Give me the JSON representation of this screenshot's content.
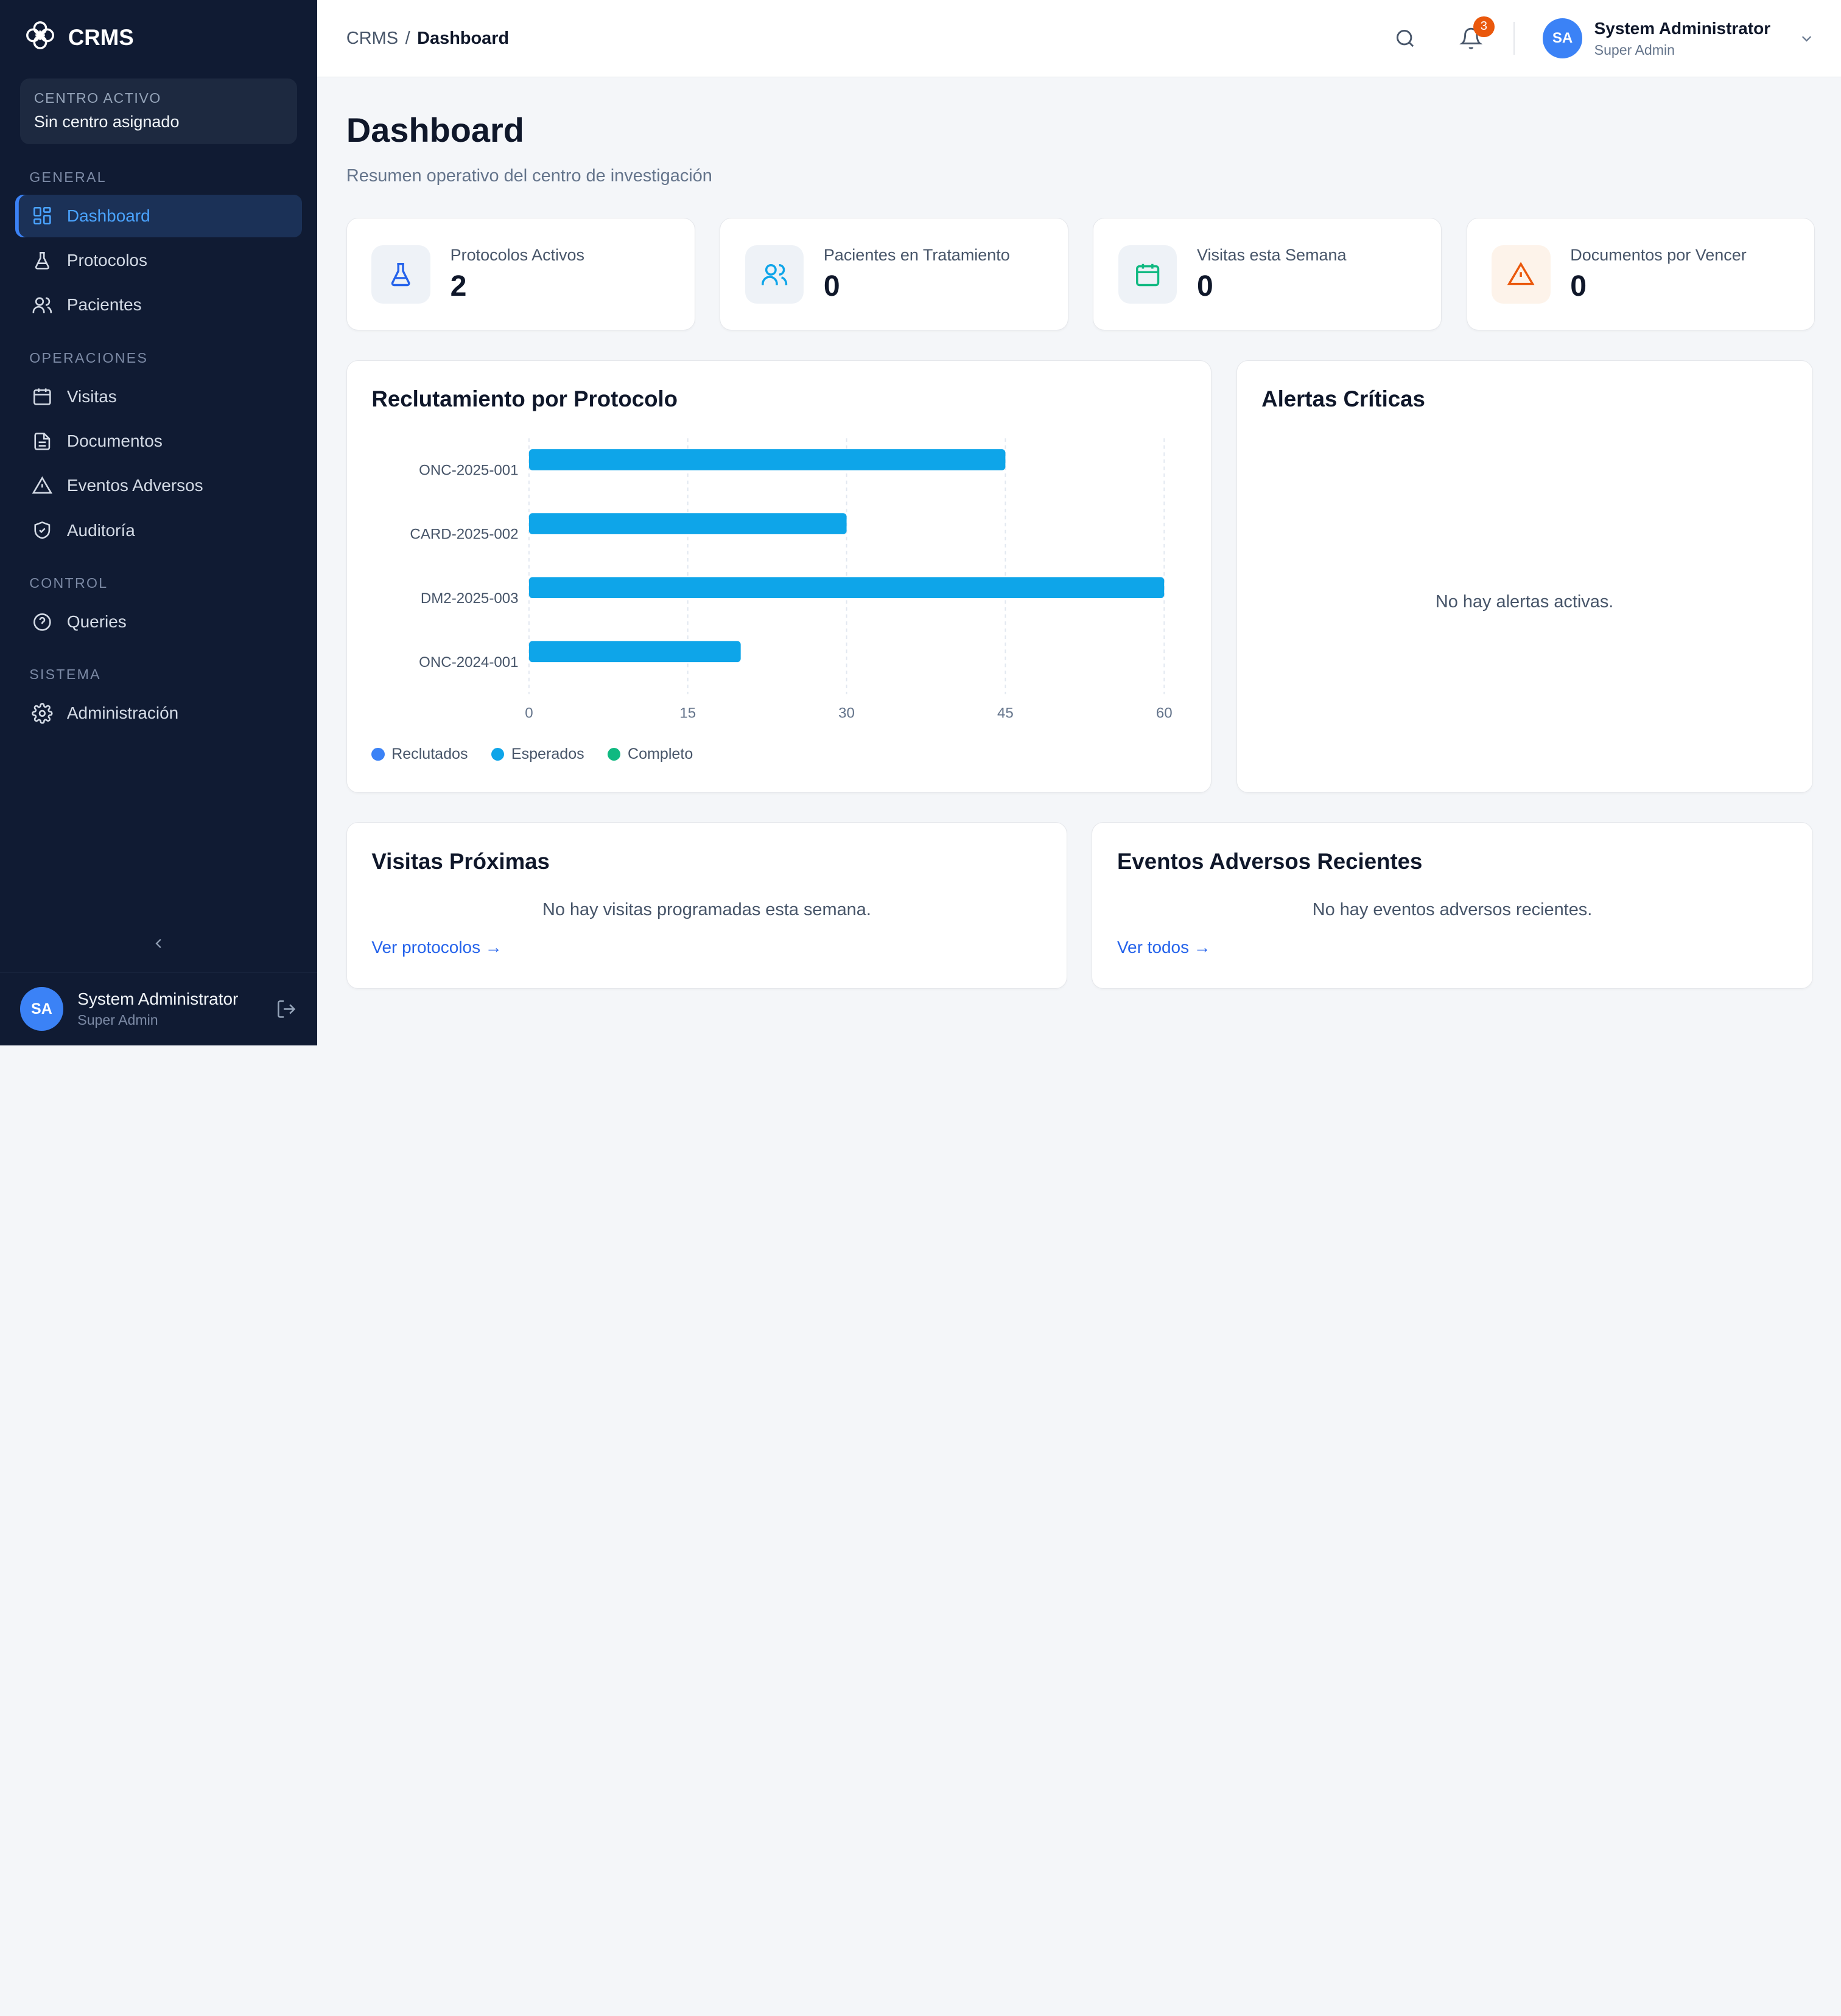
{
  "brand": {
    "name": "CRMS"
  },
  "center": {
    "label": "CENTRO ACTIVO",
    "value": "Sin centro asignado"
  },
  "sidebar": {
    "sections": [
      {
        "title": "GENERAL",
        "items": [
          "Dashboard",
          "Protocolos",
          "Pacientes"
        ]
      },
      {
        "title": "OPERACIONES",
        "items": [
          "Visitas",
          "Documentos",
          "Eventos Adversos",
          "Auditoría"
        ]
      },
      {
        "title": "CONTROL",
        "items": [
          "Queries"
        ]
      },
      {
        "title": "SISTEMA",
        "items": [
          "Administración"
        ]
      }
    ],
    "active": "Dashboard",
    "user": {
      "initials": "SA",
      "name": "System Administrator",
      "role": "Super Admin"
    }
  },
  "breadcrumb": {
    "root": "CRMS",
    "sep": "/",
    "current": "Dashboard"
  },
  "topbar": {
    "notifications": "3",
    "user": {
      "initials": "SA",
      "name": "System Administrator",
      "role": "Super Admin"
    }
  },
  "page": {
    "title": "Dashboard",
    "subtitle": "Resumen operativo del centro de investigación"
  },
  "stats": [
    {
      "label": "Protocolos Activos",
      "value": "2",
      "icon": "flask-icon",
      "color": "#2563eb",
      "bg": "#eef2f7"
    },
    {
      "label": "Pacientes en Tratamiento",
      "value": "0",
      "icon": "users-icon",
      "color": "#0ea5e9",
      "bg": "#eef2f7"
    },
    {
      "label": "Visitas esta Semana",
      "value": "0",
      "icon": "calendar-icon",
      "color": "#10b981",
      "bg": "#eef2f7"
    },
    {
      "label": "Documentos por Vencer",
      "value": "0",
      "icon": "warning-icon",
      "color": "#ea580c",
      "bg": "#fdf3ea"
    }
  ],
  "chart_card": {
    "title": "Reclutamiento por Protocolo"
  },
  "chart_data": {
    "type": "bar",
    "orientation": "horizontal",
    "categories": [
      "ONC-2025-001",
      "CARD-2025-002",
      "DM2-2025-003",
      "ONC-2024-001"
    ],
    "values": [
      45,
      30,
      60,
      20
    ],
    "xticks": [
      "0",
      "15",
      "30",
      "45",
      "60"
    ],
    "xlim": [
      0,
      60
    ],
    "grid": "vertical-dashed",
    "bar_color": "#0ea5e9",
    "legend": [
      {
        "name": "Reclutados",
        "color": "#3b82f6"
      },
      {
        "name": "Esperados",
        "color": "#0ea5e9"
      },
      {
        "name": "Completo",
        "color": "#10b981"
      }
    ],
    "legend_position": "bottom-left"
  },
  "alerts": {
    "title": "Alertas Críticas",
    "empty": "No hay alertas activas."
  },
  "visits": {
    "title": "Visitas Próximas",
    "empty": "No hay visitas programadas esta semana.",
    "link": "Ver protocolos →"
  },
  "events": {
    "title": "Eventos Adversos Recientes",
    "empty": "No hay eventos adversos recientes.",
    "link": "Ver todos →"
  }
}
